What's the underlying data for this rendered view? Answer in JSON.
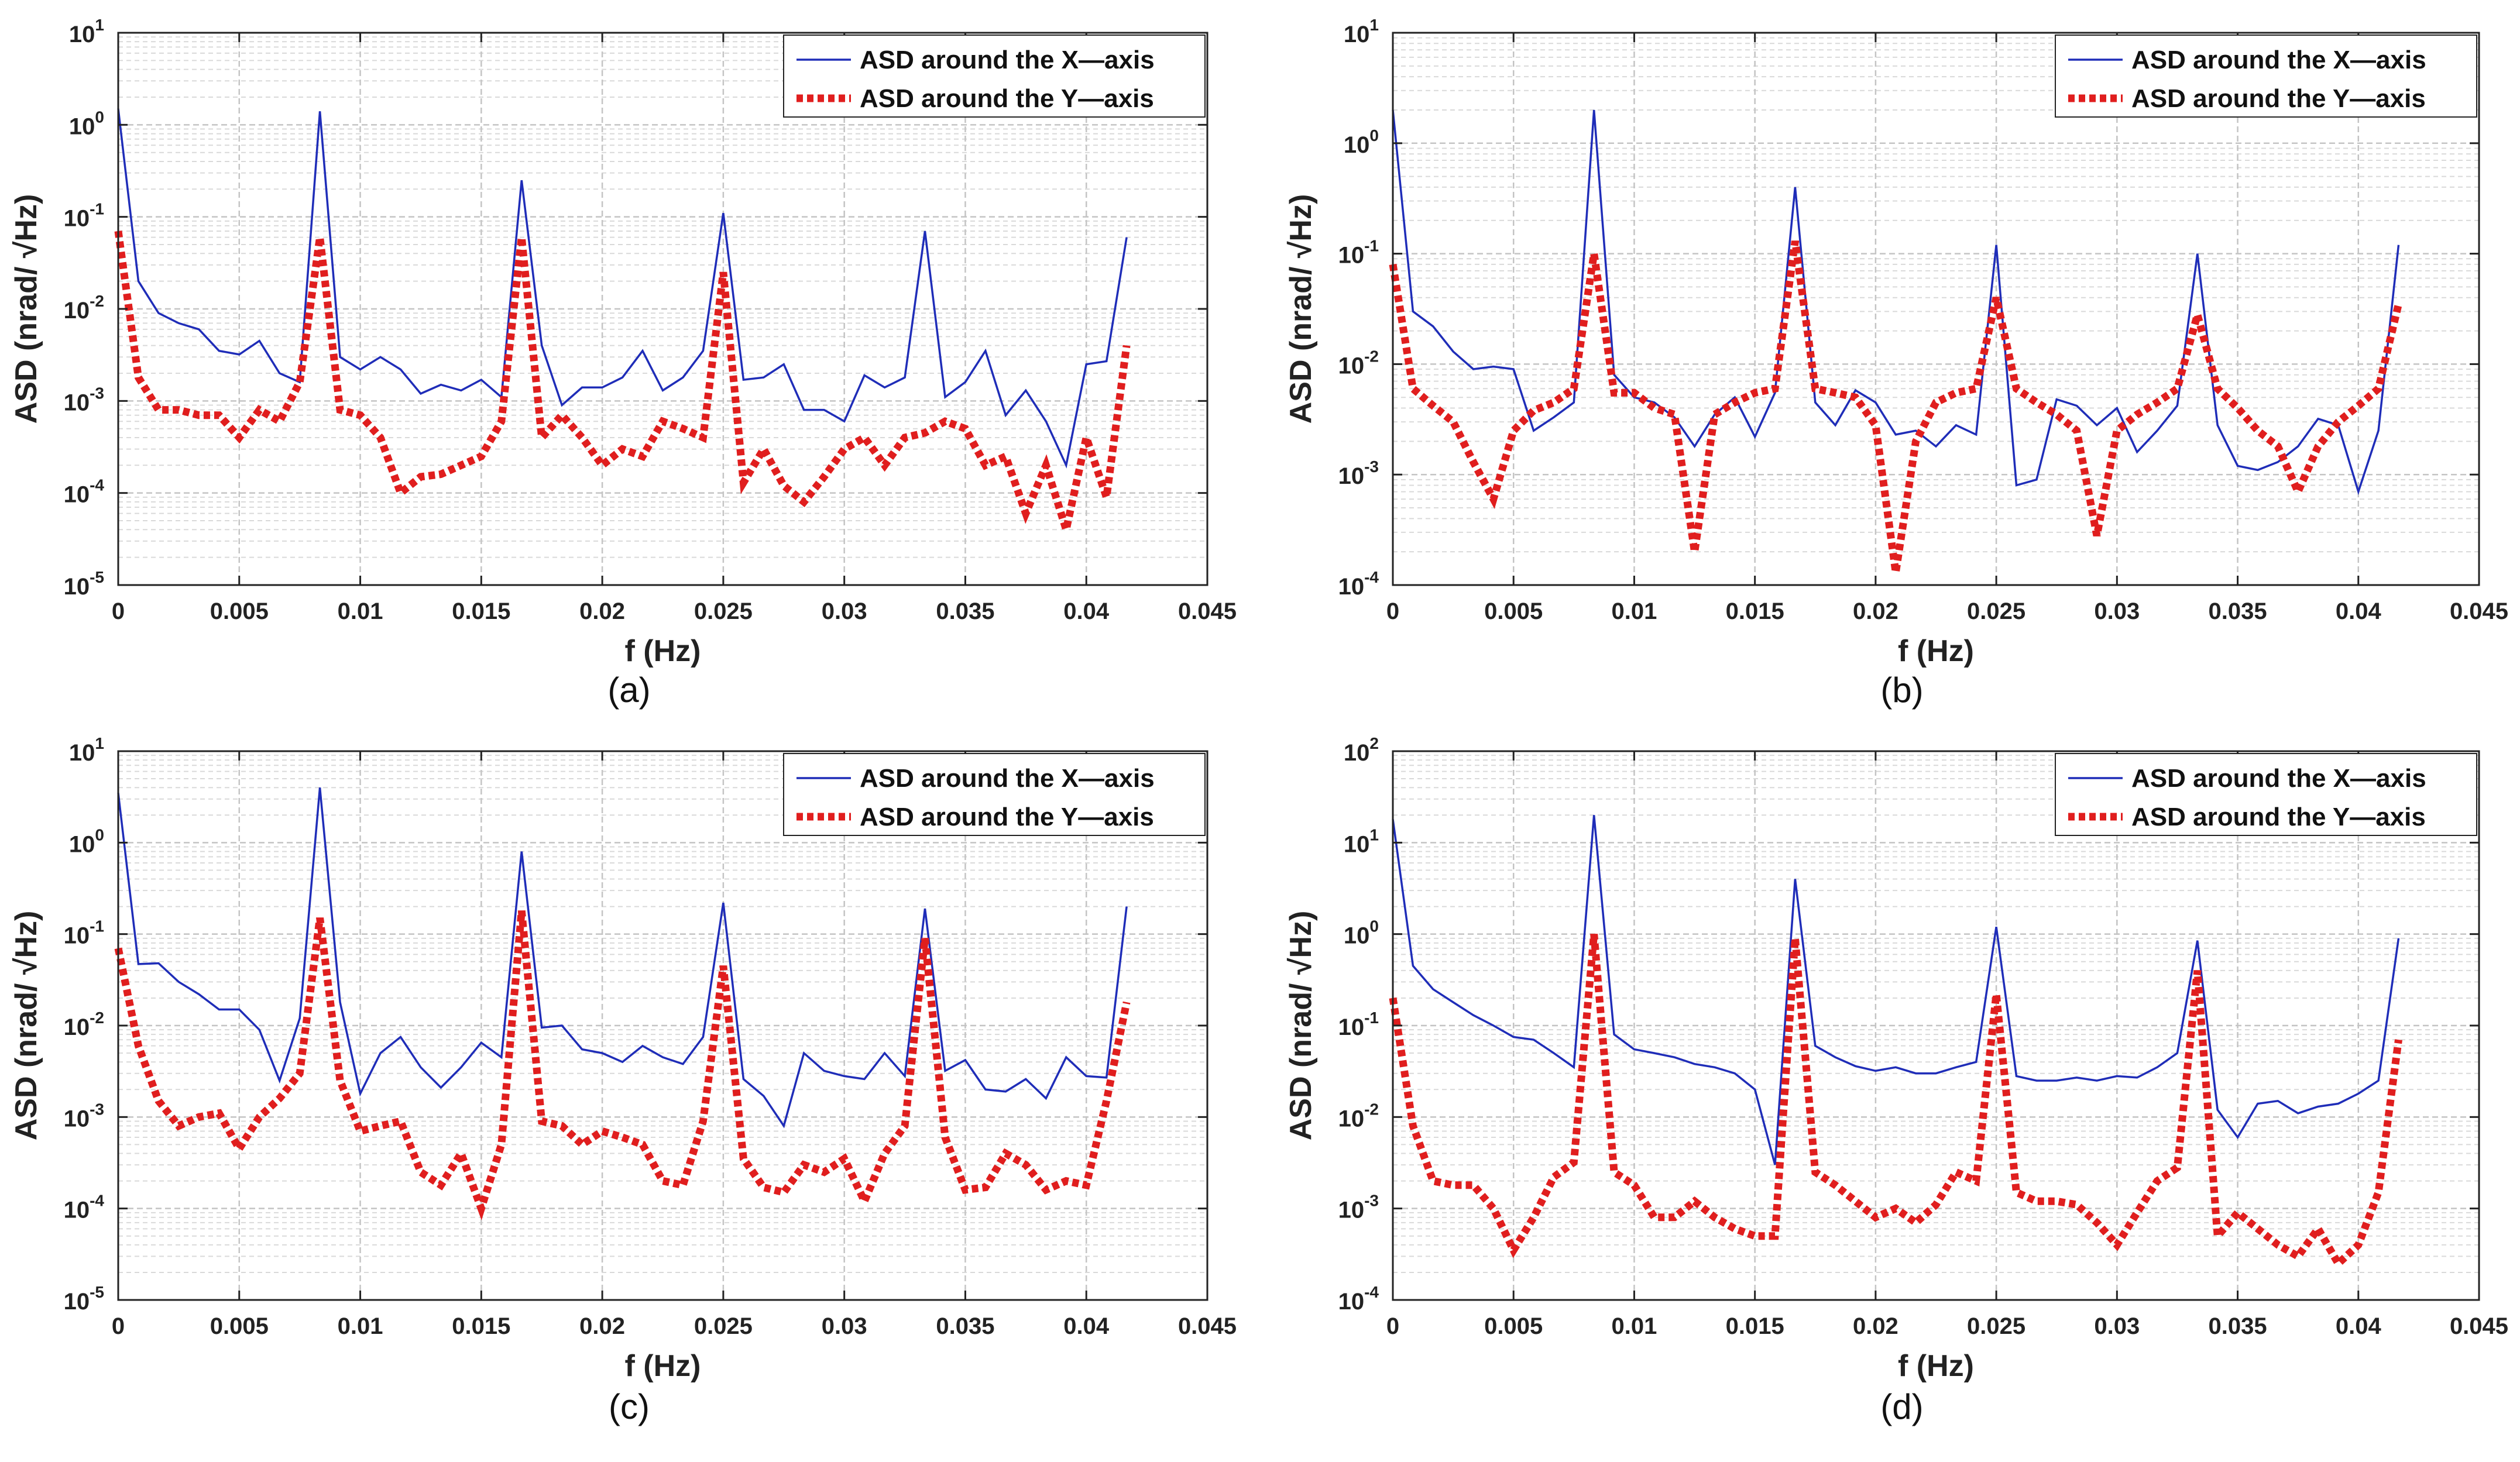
{
  "colors": {
    "series_x": "#1f2db8",
    "series_y": "#e01e1e",
    "grid": "#d9d9d9",
    "axis": "#222222"
  },
  "chart_data": [
    {
      "panel": "a",
      "caption": "(a)",
      "type": "line",
      "title": "",
      "xlabel": "f (Hz)",
      "ylabel": "ASD (nrad/ √Hz)",
      "xlim": [
        0,
        0.045
      ],
      "xticks": [
        0,
        0.005,
        0.01,
        0.015,
        0.02,
        0.025,
        0.03,
        0.035,
        0.04,
        0.045
      ],
      "xtick_labels": [
        "0",
        "0.005",
        "0.01",
        "0.015",
        "0.02",
        "0.025",
        "0.03",
        "0.035",
        "0.04",
        "0.045"
      ],
      "yscale": "log",
      "ylim_exp": [
        -5,
        1
      ],
      "ytick_exponents": [
        "-5",
        "-4",
        "-3",
        "-2",
        "-1",
        "0",
        "1"
      ],
      "grid": true,
      "legend": "top-right",
      "series": [
        {
          "name": "ASD around the X—axis",
          "style": "solid",
          "values": [
            1.5,
            0.02,
            0.009,
            0.007,
            0.006,
            0.0035,
            0.0032,
            0.0045,
            0.002,
            0.0016,
            1.4,
            0.003,
            0.0022,
            0.003,
            0.0022,
            0.0012,
            0.0015,
            0.0013,
            0.0017,
            0.0011,
            0.25,
            0.004,
            0.0009,
            0.0014,
            0.0014,
            0.0018,
            0.0035,
            0.0013,
            0.0018,
            0.0035,
            0.11,
            0.0017,
            0.0018,
            0.0025,
            0.0008,
            0.0008,
            0.0006,
            0.0019,
            0.0014,
            0.0018,
            0.07,
            0.0011,
            0.0016,
            0.0035,
            0.0007,
            0.0013,
            0.0006,
            0.0002,
            0.0025,
            0.0027,
            0.06
          ]
        },
        {
          "name": "ASD around the Y—axis",
          "style": "dotted",
          "values": [
            0.07,
            0.0018,
            0.0008,
            0.0008,
            0.0007,
            0.0007,
            0.0004,
            0.0008,
            0.0006,
            0.0016,
            0.06,
            0.0008,
            0.0007,
            0.0004,
            0.0001,
            0.00015,
            0.00016,
            0.0002,
            0.00025,
            0.0006,
            0.06,
            0.0004,
            0.0007,
            0.0004,
            0.0002,
            0.0003,
            0.00025,
            0.0006,
            0.0005,
            0.0004,
            0.025,
            0.00013,
            0.0003,
            0.00012,
            8e-05,
            0.00015,
            0.0003,
            0.0004,
            0.0002,
            0.0004,
            0.00045,
            0.0006,
            0.0005,
            0.0002,
            0.00025,
            6e-05,
            0.0002,
            4e-05,
            0.0004,
            9e-05,
            0.004
          ]
        }
      ]
    },
    {
      "panel": "b",
      "caption": "(b)",
      "type": "line",
      "title": "",
      "xlabel": "f (Hz)",
      "ylabel": "ASD (nrad/ √Hz)",
      "xlim": [
        0,
        0.045
      ],
      "xticks": [
        0,
        0.005,
        0.01,
        0.015,
        0.02,
        0.025,
        0.03,
        0.035,
        0.04,
        0.045
      ],
      "xtick_labels": [
        "0",
        "0.005",
        "0.01",
        "0.015",
        "0.02",
        "0.025",
        "0.03",
        "0.035",
        "0.04",
        "0.045"
      ],
      "yscale": "log",
      "ylim_exp": [
        -4,
        1
      ],
      "ytick_exponents": [
        "-4",
        "-3",
        "-2",
        "-1",
        "0",
        "1"
      ],
      "grid": true,
      "legend": "top-right",
      "series": [
        {
          "name": "ASD around the X—axis",
          "style": "solid",
          "values": [
            2.0,
            0.03,
            0.022,
            0.013,
            0.009,
            0.0095,
            0.009,
            0.0025,
            0.0033,
            0.0045,
            2.0,
            0.008,
            0.005,
            0.0045,
            0.0033,
            0.0018,
            0.0035,
            0.005,
            0.0022,
            0.0055,
            0.4,
            0.0045,
            0.0028,
            0.0058,
            0.0045,
            0.0023,
            0.0025,
            0.0018,
            0.0028,
            0.0023,
            0.12,
            0.0008,
            0.0009,
            0.0048,
            0.0042,
            0.0028,
            0.004,
            0.0016,
            0.0025,
            0.0042,
            0.1,
            0.0028,
            0.0012,
            0.0011,
            0.0013,
            0.0018,
            0.0032,
            0.0028,
            0.0007,
            0.0025,
            0.12
          ]
        },
        {
          "name": "ASD around the Y—axis",
          "style": "dotted",
          "values": [
            0.08,
            0.006,
            0.0042,
            0.003,
            0.0013,
            0.0006,
            0.0025,
            0.0038,
            0.0045,
            0.006,
            0.1,
            0.0055,
            0.0055,
            0.004,
            0.0035,
            0.0002,
            0.0035,
            0.0045,
            0.0055,
            0.006,
            0.13,
            0.006,
            0.0055,
            0.005,
            0.0028,
            0.00013,
            0.002,
            0.0045,
            0.0055,
            0.006,
            0.04,
            0.006,
            0.0045,
            0.0035,
            0.0025,
            0.00028,
            0.0025,
            0.0035,
            0.0045,
            0.006,
            0.028,
            0.006,
            0.004,
            0.0025,
            0.0018,
            0.0007,
            0.0018,
            0.003,
            0.0042,
            0.006,
            0.035
          ]
        }
      ]
    },
    {
      "panel": "c",
      "caption": "(c)",
      "type": "line",
      "title": "",
      "xlabel": "f (Hz)",
      "ylabel": "ASD (nrad/ √Hz)",
      "xlim": [
        0,
        0.045
      ],
      "xticks": [
        0,
        0.005,
        0.01,
        0.015,
        0.02,
        0.025,
        0.03,
        0.035,
        0.04,
        0.045
      ],
      "xtick_labels": [
        "0",
        "0.005",
        "0.01",
        "0.015",
        "0.02",
        "0.025",
        "0.03",
        "0.035",
        "0.04",
        "0.045"
      ],
      "yscale": "log",
      "ylim_exp": [
        -5,
        1
      ],
      "ytick_exponents": [
        "-5",
        "-4",
        "-3",
        "-2",
        "-1",
        "0",
        "1"
      ],
      "grid": true,
      "legend": "top-right",
      "series": [
        {
          "name": "ASD around the X—axis",
          "style": "solid",
          "values": [
            3.5,
            0.047,
            0.048,
            0.03,
            0.022,
            0.015,
            0.015,
            0.009,
            0.0025,
            0.012,
            4.0,
            0.018,
            0.0018,
            0.005,
            0.0075,
            0.0035,
            0.0021,
            0.0035,
            0.0065,
            0.0045,
            0.8,
            0.0095,
            0.01,
            0.0055,
            0.005,
            0.004,
            0.006,
            0.0045,
            0.0038,
            0.0075,
            0.22,
            0.0026,
            0.0017,
            0.0008,
            0.005,
            0.0032,
            0.0028,
            0.0026,
            0.005,
            0.0028,
            0.19,
            0.0032,
            0.0042,
            0.002,
            0.0019,
            0.0026,
            0.0016,
            0.0045,
            0.0028,
            0.0027,
            0.2
          ]
        },
        {
          "name": "ASD around the Y—axis",
          "style": "dotted",
          "values": [
            0.07,
            0.006,
            0.0015,
            0.0008,
            0.001,
            0.0011,
            0.00045,
            0.001,
            0.0016,
            0.003,
            0.15,
            0.0025,
            0.0007,
            0.0008,
            0.0009,
            0.00025,
            0.00018,
            0.0004,
            0.0001,
            0.0005,
            0.18,
            0.0009,
            0.0008,
            0.0005,
            0.0007,
            0.0006,
            0.0005,
            0.0002,
            0.00018,
            0.0009,
            0.045,
            0.00035,
            0.00017,
            0.00015,
            0.0003,
            0.00025,
            0.00035,
            0.00012,
            0.0004,
            0.0008,
            0.09,
            0.0006,
            0.00016,
            0.00017,
            0.0004,
            0.0003,
            0.00016,
            0.0002,
            0.00018,
            0.0015,
            0.018
          ]
        }
      ]
    },
    {
      "panel": "d",
      "caption": "(d)",
      "type": "line",
      "title": "",
      "xlabel": "f (Hz)",
      "ylabel": "ASD (nrad/ √Hz)",
      "xlim": [
        0,
        0.045
      ],
      "xticks": [
        0,
        0.005,
        0.01,
        0.015,
        0.02,
        0.025,
        0.03,
        0.035,
        0.04,
        0.045
      ],
      "xtick_labels": [
        "0",
        "0.005",
        "0.01",
        "0.015",
        "0.02",
        "0.025",
        "0.03",
        "0.035",
        "0.04",
        "0.045"
      ],
      "yscale": "log",
      "ylim_exp": [
        -4,
        2
      ],
      "ytick_exponents": [
        "-4",
        "-3",
        "-2",
        "-1",
        "0",
        "1",
        "2"
      ],
      "grid": true,
      "legend": "top-right",
      "series": [
        {
          "name": "ASD around the X—axis",
          "style": "solid",
          "values": [
            18,
            0.45,
            0.25,
            0.18,
            0.13,
            0.1,
            0.075,
            0.07,
            0.05,
            0.035,
            20,
            0.08,
            0.055,
            0.05,
            0.045,
            0.038,
            0.035,
            0.03,
            0.02,
            0.003,
            4,
            0.06,
            0.045,
            0.036,
            0.032,
            0.035,
            0.03,
            0.03,
            0.035,
            0.04,
            1.2,
            0.028,
            0.025,
            0.025,
            0.027,
            0.025,
            0.028,
            0.027,
            0.035,
            0.05,
            0.85,
            0.012,
            0.006,
            0.014,
            0.015,
            0.011,
            0.013,
            0.014,
            0.018,
            0.025,
            0.9
          ]
        },
        {
          "name": "ASD around the Y—axis",
          "style": "dotted",
          "values": [
            0.2,
            0.008,
            0.002,
            0.0018,
            0.0018,
            0.001,
            0.00035,
            0.0008,
            0.0022,
            0.0032,
            1.0,
            0.0025,
            0.0018,
            0.0008,
            0.0008,
            0.0012,
            0.0008,
            0.0006,
            0.0005,
            0.0005,
            0.9,
            0.0025,
            0.0018,
            0.0012,
            0.0008,
            0.001,
            0.0007,
            0.0011,
            0.0025,
            0.002,
            0.22,
            0.0015,
            0.0012,
            0.0012,
            0.0011,
            0.0007,
            0.0004,
            0.0009,
            0.002,
            0.0028,
            0.4,
            0.0005,
            0.0009,
            0.0006,
            0.0004,
            0.0003,
            0.0006,
            0.00025,
            0.0004,
            0.0015,
            0.07
          ]
        }
      ]
    }
  ]
}
